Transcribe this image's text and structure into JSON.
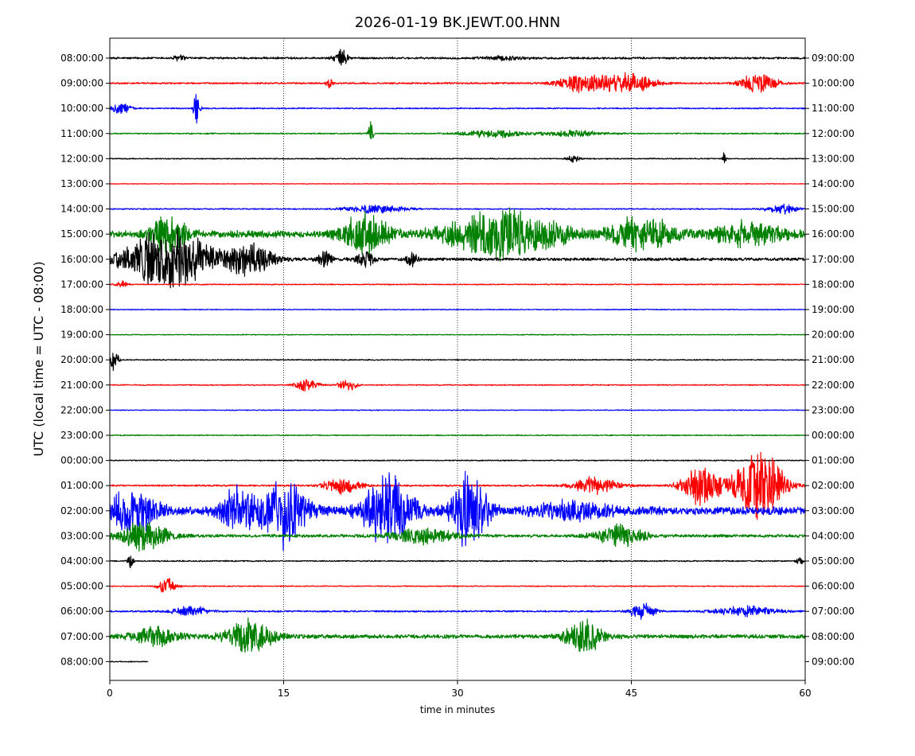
{
  "chart_data": {
    "type": "line",
    "title": "2026-01-19 BK.JEWT.00.HNN",
    "xlabel": "time in minutes",
    "ylabel": "UTC (local time = UTC - 08:00)",
    "xlim": [
      0,
      60
    ],
    "x_ticks": [
      "0",
      "15",
      "30",
      "45",
      "60"
    ],
    "grid": "vertical dotted lines at 15, 30, 45",
    "trace_colors": [
      "#000000",
      "#ff0000",
      "#0000ff",
      "#008000"
    ],
    "rows": [
      {
        "left": "08:00:00",
        "right": "09:00:00",
        "color": "#000000",
        "level": 0.1,
        "bursts": [
          [
            34,
            3.4,
            0.18
          ],
          [
            20,
            1.2,
            0.8
          ],
          [
            6,
            1.0,
            0.3
          ]
        ]
      },
      {
        "left": "09:00:00",
        "right": "10:00:00",
        "color": "#ff0000",
        "level": 0.08,
        "bursts": [
          [
            41,
            4.5,
            0.9
          ],
          [
            45,
            4.0,
            0.9
          ],
          [
            56,
            3.0,
            1.0
          ],
          [
            19,
            0.6,
            0.5
          ]
        ]
      },
      {
        "left": "10:00:00",
        "right": "11:00:00",
        "color": "#0000ff",
        "level": 0.06,
        "bursts": [
          [
            1,
            1.5,
            0.6
          ],
          [
            7.5,
            0.5,
            2.0
          ]
        ]
      },
      {
        "left": "11:00:00",
        "right": "12:00:00",
        "color": "#008000",
        "level": 0.06,
        "bursts": [
          [
            33,
            5,
            0.4
          ],
          [
            40,
            5,
            0.3
          ],
          [
            22.5,
            0.4,
            1.6
          ]
        ]
      },
      {
        "left": "12:00:00",
        "right": "13:00:00",
        "color": "#000000",
        "level": 0.05,
        "bursts": [
          [
            40,
            1.0,
            0.4
          ],
          [
            53,
            0.3,
            0.6
          ]
        ]
      },
      {
        "left": "13:00:00",
        "right": "14:00:00",
        "color": "#ff0000",
        "level": 0.03,
        "bursts": []
      },
      {
        "left": "14:00:00",
        "right": "15:00:00",
        "color": "#0000ff",
        "level": 0.06,
        "bursts": [
          [
            58,
            2.5,
            0.5
          ],
          [
            23,
            5,
            0.4
          ]
        ]
      },
      {
        "left": "15:00:00",
        "right": "16:00:00",
        "color": "#008000",
        "level": 0.35,
        "bursts": [
          [
            34,
            9,
            2.4
          ],
          [
            22,
            4,
            1.8
          ],
          [
            46,
            5,
            1.6
          ],
          [
            55,
            6,
            1.0
          ],
          [
            5,
            3,
            1.8
          ]
        ]
      },
      {
        "left": "16:00:00",
        "right": "17:00:00",
        "color": "#000000",
        "level": 0.15,
        "bursts": [
          [
            5,
            7,
            3.2
          ],
          [
            12,
            4,
            1.5
          ],
          [
            18.5,
            1.2,
            0.9
          ],
          [
            22,
            1.5,
            0.8
          ],
          [
            26,
            1.0,
            0.7
          ]
        ]
      },
      {
        "left": "17:00:00",
        "right": "18:00:00",
        "color": "#ff0000",
        "level": 0.05,
        "bursts": [
          [
            1,
            1.0,
            0.4
          ]
        ]
      },
      {
        "left": "18:00:00",
        "right": "19:00:00",
        "color": "#0000ff",
        "level": 0.04,
        "bursts": []
      },
      {
        "left": "19:00:00",
        "right": "20:00:00",
        "color": "#008000",
        "level": 0.04,
        "bursts": []
      },
      {
        "left": "20:00:00",
        "right": "21:00:00",
        "color": "#000000",
        "level": 0.05,
        "bursts": [
          [
            0.3,
            0.8,
            1.1
          ]
        ]
      },
      {
        "left": "21:00:00",
        "right": "22:00:00",
        "color": "#ff0000",
        "level": 0.05,
        "bursts": [
          [
            17,
            2.0,
            0.6
          ],
          [
            20.5,
            1.5,
            0.6
          ]
        ]
      },
      {
        "left": "22:00:00",
        "right": "23:00:00",
        "color": "#0000ff",
        "level": 0.04,
        "bursts": []
      },
      {
        "left": "23:00:00",
        "right": "00:00:00",
        "color": "#008000",
        "level": 0.05,
        "bursts": []
      },
      {
        "left": "00:00:00",
        "right": "01:00:00",
        "color": "#000000",
        "level": 0.05,
        "bursts": []
      },
      {
        "left": "01:00:00",
        "right": "02:00:00",
        "color": "#ff0000",
        "level": 0.08,
        "bursts": [
          [
            56,
            4,
            3.8
          ],
          [
            51,
            3,
            2.2
          ],
          [
            42,
            4,
            0.8
          ],
          [
            20,
            3,
            0.8
          ]
        ]
      },
      {
        "left": "02:00:00",
        "right": "03:00:00",
        "color": "#0000ff",
        "level": 0.4,
        "bursts": [
          [
            15,
            4,
            3.2
          ],
          [
            24,
            4,
            3.4
          ],
          [
            31,
            3,
            3.5
          ],
          [
            2,
            4,
            2.2
          ],
          [
            11,
            3,
            2.0
          ],
          [
            40,
            6,
            0.8
          ]
        ]
      },
      {
        "left": "03:00:00",
        "right": "04:00:00",
        "color": "#008000",
        "level": 0.15,
        "bursts": [
          [
            3,
            4,
            1.4
          ],
          [
            27,
            5,
            0.8
          ],
          [
            44,
            4,
            1.0
          ]
        ]
      },
      {
        "left": "04:00:00",
        "right": "05:00:00",
        "color": "#000000",
        "level": 0.06,
        "bursts": [
          [
            1.8,
            0.5,
            0.6
          ],
          [
            59.5,
            0.5,
            0.6
          ]
        ]
      },
      {
        "left": "05:00:00",
        "right": "06:00:00",
        "color": "#ff0000",
        "level": 0.05,
        "bursts": [
          [
            5,
            1.5,
            0.8
          ]
        ]
      },
      {
        "left": "06:00:00",
        "right": "07:00:00",
        "color": "#0000ff",
        "level": 0.08,
        "bursts": [
          [
            46,
            2.0,
            0.8
          ],
          [
            55,
            5,
            0.5
          ],
          [
            7,
            3,
            0.5
          ]
        ]
      },
      {
        "left": "07:00:00",
        "right": "08:00:00",
        "color": "#008000",
        "level": 0.2,
        "bursts": [
          [
            12,
            4,
            1.6
          ],
          [
            41,
            3,
            1.6
          ],
          [
            4,
            4,
            0.9
          ]
        ]
      },
      {
        "left": "08:00:00",
        "right": "09:00:00",
        "color": "#000000",
        "level": 0.05,
        "end_minute": 3.3,
        "bursts": []
      }
    ]
  }
}
